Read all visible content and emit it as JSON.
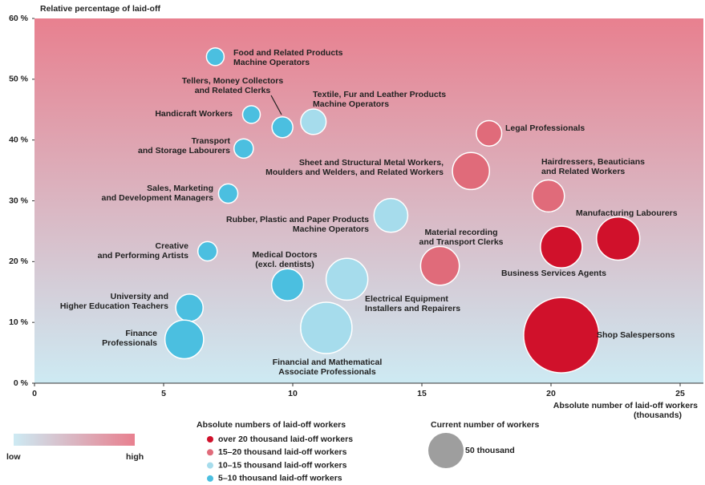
{
  "chart_data": {
    "type": "bubble",
    "ylabel": "Relative percentage of laid-off",
    "xlabel": [
      "Absolute number of laid-off workers",
      "(thousands)"
    ],
    "xlim": [
      0,
      26
    ],
    "ylim": [
      0,
      60
    ],
    "xticks": [
      0,
      5,
      10,
      15,
      20,
      25
    ],
    "yticks": [
      {
        "value": 0,
        "label": "0 %"
      },
      {
        "value": 10,
        "label": "10 %"
      },
      {
        "value": 20,
        "label": "20 %"
      },
      {
        "value": 30,
        "label": "30 %"
      },
      {
        "value": 40,
        "label": "40 %"
      },
      {
        "value": 50,
        "label": "50 %"
      },
      {
        "value": 60,
        "label": "60 %"
      }
    ],
    "background_gradient": {
      "low_label": "low",
      "high_label": "high",
      "low_color": "#cdeaf3",
      "high_color": "#e8808f"
    },
    "legend_title": "Absolute numbers of laid-off workers",
    "size_legend": {
      "title": "Current number of workers",
      "value": 50,
      "label": "50 thousand",
      "color": "#9e9e9e"
    },
    "series": [
      {
        "name": "over 20 thousand laid-off workers",
        "color": "#d0112b",
        "points": [
          {
            "label": [
              "Manufacturing Labourers"
            ],
            "x": 22.6,
            "y": 23.8,
            "size": 75
          },
          {
            "label": [
              "Business Services Agents"
            ],
            "x": 20.4,
            "y": 22.4,
            "size": 70
          },
          {
            "label": [
              "Shop Salespersons"
            ],
            "x": 20.4,
            "y": 7.9,
            "size": 228
          }
        ]
      },
      {
        "name": "15–20 thousand laid-off workers",
        "color": "#e06b7a",
        "points": [
          {
            "label": [
              "Legal Professionals"
            ],
            "x": 17.6,
            "y": 41.1,
            "size": 26
          },
          {
            "label": [
              "Sheet and Structural Metal Workers,",
              "Moulders and Welders, and Related Workers"
            ],
            "x": 16.9,
            "y": 34.9,
            "size": 55
          },
          {
            "label": [
              "Hairdressers, Beauticians",
              "and Related Workers"
            ],
            "x": 19.9,
            "y": 30.8,
            "size": 41
          },
          {
            "label": [
              "Material recording",
              "and Transport Clerks"
            ],
            "x": 15.7,
            "y": 19.3,
            "size": 60
          }
        ]
      },
      {
        "name": "10–15 thousand laid-off workers",
        "color": "#a6dcec",
        "points": [
          {
            "label": [
              "Textile, Fur and Leather Products",
              "Machine Operators"
            ],
            "x": 10.8,
            "y": 43.0,
            "size": 26
          },
          {
            "label": [
              "Rubber, Plastic and Paper Products",
              "Machine Operators"
            ],
            "x": 13.8,
            "y": 27.6,
            "size": 46
          },
          {
            "label": [
              "Electrical Equipment",
              "Installers and Repairers"
            ],
            "x": 12.1,
            "y": 17.1,
            "size": 70
          },
          {
            "label": [
              "Financial and Mathematical",
              "Associate Professionals"
            ],
            "x": 11.3,
            "y": 9.1,
            "size": 106
          }
        ]
      },
      {
        "name": "5–10 thousand laid-off workers",
        "color": "#4bbfe0",
        "points": [
          {
            "label": [
              "Food and Related Products",
              "Machine Operators"
            ],
            "x": 7.0,
            "y": 53.7,
            "size": 12.5
          },
          {
            "label": [
              "Tellers, Money Collectors",
              "and Related Clerks"
            ],
            "x": 9.6,
            "y": 42.1,
            "size": 17.5
          },
          {
            "label": [
              "Handicraft Workers"
            ],
            "x": 8.4,
            "y": 44.2,
            "size": 12.5
          },
          {
            "label": [
              "Transport",
              "and Storage Labourers"
            ],
            "x": 8.1,
            "y": 38.6,
            "size": 15
          },
          {
            "label": [
              "Sales, Marketing",
              "and Development Managers"
            ],
            "x": 7.5,
            "y": 31.2,
            "size": 15
          },
          {
            "label": [
              "Creative",
              "and Performing Artists"
            ],
            "x": 6.7,
            "y": 21.7,
            "size": 15
          },
          {
            "label": [
              "Medical Doctors",
              "(excl. dentists)"
            ],
            "x": 9.8,
            "y": 16.2,
            "size": 41
          },
          {
            "label": [
              "University and",
              "Higher Education Teachers"
            ],
            "x": 6.0,
            "y": 12.4,
            "size": 30
          },
          {
            "label": [
              "Finance",
              "Professionals"
            ],
            "x": 5.8,
            "y": 7.2,
            "size": 60
          }
        ]
      }
    ]
  }
}
